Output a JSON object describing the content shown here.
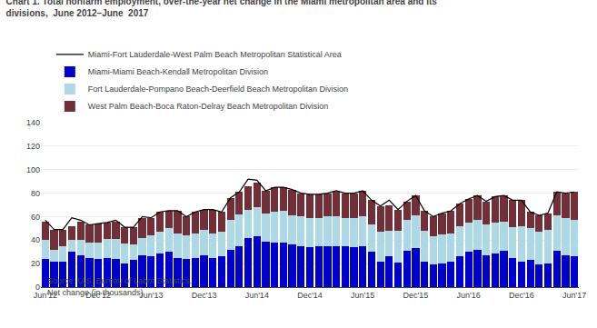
{
  "chart_data": {
    "type": "bar",
    "stacked": true,
    "title": "Chart 1. Total nonfarm employment, over-the-year net change in the Miami metropolitan area and its",
    "subtitle": "divisions,  June 2012–June  2017",
    "ylabel": "Net change (in thousands)",
    "source": "Source: U.S. Bureau of Labor Statistics.",
    "categories": [
      "Jun'12",
      null,
      null,
      null,
      null,
      null,
      "Dec'12",
      null,
      null,
      null,
      null,
      null,
      "Jun'13",
      null,
      null,
      null,
      null,
      null,
      "Dec'13",
      null,
      null,
      null,
      null,
      null,
      "Jun'14",
      null,
      null,
      null,
      null,
      null,
      "Dec'14",
      null,
      null,
      null,
      null,
      null,
      "Jun'15",
      null,
      null,
      null,
      null,
      null,
      "Dec'15",
      null,
      null,
      null,
      null,
      null,
      "Jun'16",
      null,
      null,
      null,
      null,
      null,
      "Dec'16",
      null,
      null,
      null,
      null,
      null,
      "Jun'17"
    ],
    "series": [
      {
        "name": "Miami-Miami Beach-Kendall Metropolitan Division",
        "color": "#0000cc",
        "values": [
          24,
          22,
          22,
          30,
          27,
          25,
          24,
          25,
          24,
          20,
          23,
          27,
          26,
          29,
          30,
          25,
          24,
          25,
          27,
          25,
          26,
          32,
          35,
          42,
          43,
          39,
          38,
          38,
          36,
          35,
          34,
          35,
          35,
          35,
          35,
          34,
          35,
          30,
          22,
          26,
          21,
          31,
          33,
          22,
          19,
          20,
          22,
          26,
          30,
          32,
          27,
          29,
          31,
          25,
          22,
          23,
          19,
          20,
          31,
          27,
          26
        ]
      },
      {
        "name": "Fort Lauderdale-Pompano Beach-Deerfield Beach Metropolitan Division",
        "color": "#add8e6",
        "values": [
          16,
          10,
          13,
          10,
          13,
          13,
          14,
          16,
          17,
          17,
          13,
          15,
          18,
          18,
          20,
          21,
          20,
          21,
          22,
          21,
          21,
          25,
          27,
          24,
          25,
          24,
          26,
          27,
          25,
          25,
          25,
          24,
          25,
          25,
          24,
          25,
          25,
          23,
          25,
          22,
          27,
          26,
          28,
          26,
          24,
          25,
          24,
          26,
          25,
          25,
          26,
          26,
          25,
          26,
          30,
          27,
          28,
          29,
          30,
          32,
          31
        ]
      },
      {
        "name": "West Palm Beach-Boca Raton-Delray Beach Metropolitan Division",
        "color": "#722f37",
        "values": [
          16,
          17,
          14,
          12,
          16,
          15,
          16,
          14,
          15,
          14,
          15,
          17,
          15,
          17,
          15,
          19,
          16,
          18,
          17,
          20,
          17,
          19,
          19,
          20,
          21,
          19,
          21,
          20,
          22,
          20,
          20,
          20,
          20,
          21,
          21,
          21,
          22,
          21,
          22,
          22,
          18,
          16,
          17,
          17,
          17,
          18,
          19,
          19,
          20,
          21,
          20,
          22,
          22,
          23,
          22,
          14,
          14,
          14,
          20,
          21,
          24
        ]
      },
      {
        "name": "Miami-Fort Lauderdale-West Palm Beach Metropolitan Statistical Area",
        "color": "#000000",
        "type": "line",
        "values": [
          57,
          49,
          49,
          59,
          57,
          53,
          54,
          55,
          57,
          51,
          51,
          60,
          59,
          64,
          65,
          65,
          60,
          64,
          66,
          66,
          64,
          76,
          81,
          92,
          91,
          82,
          85,
          85,
          83,
          80,
          79,
          79,
          80,
          82,
          80,
          80,
          82,
          74,
          69,
          74,
          66,
          73,
          78,
          65,
          60,
          63,
          65,
          71,
          75,
          78,
          73,
          77,
          78,
          74,
          74,
          64,
          61,
          63,
          81,
          80,
          81
        ]
      }
    ],
    "ylim": [
      0,
      140
    ],
    "yticks": [
      0,
      20,
      40,
      60,
      80,
      100,
      120,
      140
    ],
    "grid": true
  }
}
